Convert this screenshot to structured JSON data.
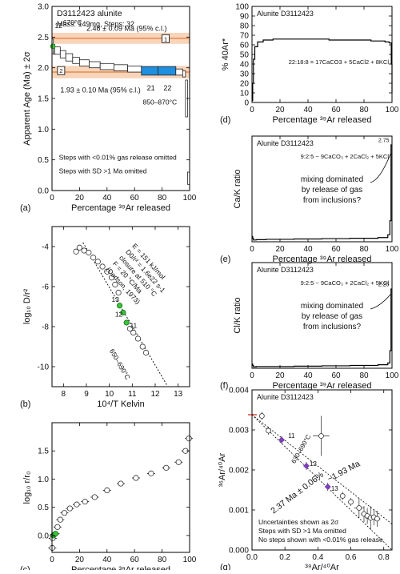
{
  "chart_data": [
    {
      "panel": "(a)",
      "type": "step",
      "title": "D3112423 alunite",
      "subtitle": "Mass: 149mg, Steps: 32",
      "xlabel": "Percentage ³⁹Ar released",
      "ylabel": "Apparent Age (Ma) ± 2σ",
      "xlim": [
        0,
        100
      ],
      "ylim": [
        0,
        3
      ],
      "xticks": [
        0,
        20,
        40,
        60,
        80,
        100
      ],
      "yticks": [
        0,
        0.5,
        1.0,
        1.5,
        2.0,
        2.5,
        3.0
      ],
      "plateau1": {
        "label": "2.48 ± 0.09 Ma (95% c.l.)",
        "value": 2.48,
        "err": 0.09,
        "id": "1"
      },
      "plateau2": {
        "label": "1.93 ± 0.10 Ma (95% c.l.)",
        "value": 1.93,
        "err": 0.1,
        "id": "2"
      },
      "annotations": [
        "12",
        "670°C",
        "21",
        "22",
        "850–870°C"
      ],
      "notes": [
        "Steps with <0.01% gas release omitted",
        "Steps with SD >1 Ma omitted"
      ],
      "steps": [
        {
          "x0": 0,
          "x1": 1,
          "y": 2.35,
          "e": 0.12
        },
        {
          "x0": 1,
          "x1": 2,
          "y": 2.3,
          "e": 0.08
        },
        {
          "x0": 2,
          "x1": 6,
          "y": 2.28,
          "e": 0.06
        },
        {
          "x0": 6,
          "x1": 10,
          "y": 2.22,
          "e": 0.06
        },
        {
          "x0": 10,
          "x1": 15,
          "y": 2.17,
          "e": 0.06
        },
        {
          "x0": 15,
          "x1": 20,
          "y": 2.12,
          "e": 0.05
        },
        {
          "x0": 20,
          "x1": 27,
          "y": 2.08,
          "e": 0.05
        },
        {
          "x0": 27,
          "x1": 35,
          "y": 2.05,
          "e": 0.05
        },
        {
          "x0": 35,
          "x1": 45,
          "y": 2.02,
          "e": 0.05
        },
        {
          "x0": 45,
          "x1": 55,
          "y": 2.0,
          "e": 0.05
        },
        {
          "x0": 55,
          "x1": 65,
          "y": 1.98,
          "e": 0.05
        },
        {
          "x0": 65,
          "x1": 77,
          "y": 1.95,
          "e": 0.07,
          "blue": true
        },
        {
          "x0": 77,
          "x1": 90,
          "y": 1.95,
          "e": 0.07,
          "blue": true
        },
        {
          "x0": 90,
          "x1": 95,
          "y": 1.93,
          "e": 0.05
        },
        {
          "x0": 95,
          "x1": 97,
          "y": 1.9,
          "e": 0.05
        },
        {
          "x0": 97,
          "x1": 98.5,
          "y": 1.5,
          "e": 0.3
        },
        {
          "x0": 98.5,
          "x1": 100,
          "y": 0.2,
          "e": 0.1
        }
      ]
    },
    {
      "panel": "(b)",
      "type": "scatter",
      "xlabel": "10⁴/T Kelvin",
      "ylabel": "log₁₀ D/r²",
      "xlim": [
        7.5,
        13.5
      ],
      "ylim": [
        -11,
        -3
      ],
      "xticks": [
        8,
        9,
        10,
        11,
        12,
        13
      ],
      "yticks": [
        -4,
        -6,
        -8,
        -10
      ],
      "line": {
        "x": [
          8.85,
          12.5
        ],
        "y": [
          -3.8,
          -10.9
        ]
      },
      "annotation_lines": [
        "E = 151 kJ/mol",
        "D0/r² = 1.6e22 s-1",
        "closure at 510 °C",
        "F = 20 °C/Ma",
        "(Dodson, 1973)"
      ],
      "labels": [
        "13",
        "12",
        "11",
        "650–690°C"
      ],
      "points": [
        {
          "x": 8.55,
          "y": -4.25
        },
        {
          "x": 8.7,
          "y": -4.05
        },
        {
          "x": 8.9,
          "y": -4.2
        },
        {
          "x": 9.1,
          "y": -4.3
        },
        {
          "x": 9.3,
          "y": -4.55
        },
        {
          "x": 9.5,
          "y": -4.75
        },
        {
          "x": 9.7,
          "y": -5.0
        },
        {
          "x": 9.9,
          "y": -5.25
        },
        {
          "x": 10.1,
          "y": -5.55
        },
        {
          "x": 10.25,
          "y": -5.9
        },
        {
          "x": 10.4,
          "y": -6.3
        },
        {
          "x": 10.45,
          "y": -6.95,
          "green": true
        },
        {
          "x": 10.6,
          "y": -7.3,
          "green": true
        },
        {
          "x": 10.75,
          "y": -7.8,
          "green": true
        },
        {
          "x": 10.9,
          "y": -8.1
        },
        {
          "x": 11.05,
          "y": -8.3
        },
        {
          "x": 11.25,
          "y": -8.6
        },
        {
          "x": 11.45,
          "y": -9.0
        },
        {
          "x": 11.6,
          "y": -9.3
        }
      ]
    },
    {
      "panel": "(c)",
      "type": "scatter",
      "xlabel": "Percentage ³⁹Ar released",
      "ylabel": "log₁₀ r/r₀",
      "xlim": [
        0,
        100
      ],
      "ylim": [
        -0.3,
        2.0
      ],
      "xticks": [
        0,
        20,
        40,
        60,
        80,
        100
      ],
      "yticks": [
        0.0,
        0.5,
        1.0,
        1.5
      ],
      "points": [
        {
          "x": 0.2,
          "y": -0.22
        },
        {
          "x": 0.5,
          "y": -0.05
        },
        {
          "x": 1.0,
          "y": 0.0,
          "green": true
        },
        {
          "x": 1.8,
          "y": 0.02,
          "green": true
        },
        {
          "x": 2.6,
          "y": 0.03,
          "green": true
        },
        {
          "x": 4,
          "y": 0.15
        },
        {
          "x": 6,
          "y": 0.28
        },
        {
          "x": 9,
          "y": 0.4
        },
        {
          "x": 13,
          "y": 0.48
        },
        {
          "x": 18,
          "y": 0.55
        },
        {
          "x": 24,
          "y": 0.6
        },
        {
          "x": 31,
          "y": 0.68
        },
        {
          "x": 40,
          "y": 0.8
        },
        {
          "x": 50,
          "y": 0.92
        },
        {
          "x": 61,
          "y": 1.02
        },
        {
          "x": 72,
          "y": 1.1
        },
        {
          "x": 83,
          "y": 1.2
        },
        {
          "x": 92,
          "y": 1.3
        },
        {
          "x": 97,
          "y": 1.5
        },
        {
          "x": 99.5,
          "y": 1.72
        }
      ]
    },
    {
      "panel": "(d)",
      "type": "step",
      "title": "Alunite D3112423",
      "xlabel": "Percentage ³⁹Ar released",
      "ylabel": "% 40Ar*",
      "xlim": [
        0,
        100
      ],
      "ylim": [
        0,
        100
      ],
      "xticks": [
        0,
        20,
        40,
        60,
        80,
        100
      ],
      "yticks": [
        0,
        10,
        20,
        30,
        40,
        50,
        60,
        70,
        80,
        90,
        100
      ],
      "annotation": "22:18:8 = 17CaCO3 + 5CaCl2 + 8KCl",
      "x": [
        0,
        0.5,
        1,
        2,
        4,
        8,
        15,
        25,
        40,
        55,
        70,
        85,
        95,
        98,
        99.5,
        100
      ],
      "y": [
        2,
        20,
        45,
        58,
        63,
        65,
        66,
        66,
        66,
        65,
        65,
        64,
        63,
        62,
        40,
        10
      ]
    },
    {
      "panel": "(e)",
      "type": "step",
      "title": "Alunite D3112423",
      "xlabel": "Percentage ³⁹Ar released",
      "ylabel": "Ca/K ratio",
      "xlim": [
        0,
        100
      ],
      "ylim": [
        0,
        3
      ],
      "xticks": [
        0,
        20,
        40,
        60,
        80,
        100
      ],
      "annotation": "9:2:5 ~ 9CaCO₃ + 2CaCl₂ + 5KCl",
      "value_label": "2.75",
      "note": [
        "mixing dominated",
        "by release of gas",
        "from inclusions?"
      ],
      "x": [
        0,
        0.5,
        1,
        3,
        10,
        30,
        50,
        70,
        90,
        97,
        98.5,
        99.3,
        100
      ],
      "y": [
        0.15,
        0.1,
        0.05,
        0.06,
        0.07,
        0.08,
        0.09,
        0.1,
        0.12,
        0.2,
        0.6,
        2.75,
        2.75
      ]
    },
    {
      "panel": "(f)",
      "type": "step",
      "title": "Alunite D3112423",
      "xlabel": "Percentage ³⁹Ar released",
      "ylabel": "Cl/K ratio",
      "xlim": [
        0,
        100
      ],
      "ylim": [
        0,
        3
      ],
      "xticks": [
        0,
        20,
        40,
        60,
        80,
        100
      ],
      "annotation": "9:2:5 ~ 9CaCO₃ + 2CaCl₂ + 5KCl",
      "value_label": "2.25",
      "note": [
        "mixing dominated",
        "by release of gas",
        "from inclusions?"
      ],
      "x": [
        0,
        0.5,
        1,
        3,
        10,
        30,
        50,
        70,
        90,
        97,
        98.5,
        99.3,
        100
      ],
      "y": [
        0.12,
        0.08,
        0.04,
        0.05,
        0.05,
        0.06,
        0.07,
        0.08,
        0.1,
        0.15,
        0.5,
        2.25,
        2.25
      ]
    },
    {
      "panel": "(g)",
      "type": "scatter",
      "title": "Alunite D3112423",
      "xlabel": "³⁹Ar/⁴⁰Ar",
      "ylabel": "³⁶Ar/⁴⁰Ar",
      "xlim": [
        0,
        0.85
      ],
      "ylim": [
        0,
        0.004
      ],
      "xticks": [
        0.0,
        0.2,
        0.4,
        0.6,
        0.8
      ],
      "yticks": [
        0.0,
        0.001,
        0.002,
        0.003,
        0.004
      ],
      "line_labels": [
        "2.37 Ma ± 0.06%",
        "~1.93 Ma"
      ],
      "point_labels": [
        "11",
        "12",
        "13",
        "630–690°C"
      ],
      "notes": [
        "Uncertainties shown as 2σ",
        "Steps with SD >1 Ma omitted",
        "No steps shown with <0.01% gas release"
      ],
      "lines": [
        {
          "x": [
            0.0,
            0.85
          ],
          "y": [
            0.00338,
            0.0
          ]
        },
        {
          "x": [
            0.0,
            0.85
          ],
          "y": [
            0.00338,
            0.00065
          ]
        }
      ],
      "points": [
        {
          "x": 0.06,
          "y": 0.00335,
          "ex": 0.01,
          "ey": 0.0001
        },
        {
          "x": 0.1,
          "y": 0.00298,
          "ex": 0.01,
          "ey": 0.0001
        },
        {
          "x": 0.18,
          "y": 0.00275,
          "ex": 0.01,
          "ey": 0.0001,
          "purple": true
        },
        {
          "x": 0.33,
          "y": 0.0021,
          "ex": 0.01,
          "ey": 0.0001,
          "purple": true
        },
        {
          "x": 0.42,
          "y": 0.00285,
          "ex": 0.05,
          "ey": 0.0005
        },
        {
          "x": 0.46,
          "y": 0.00158,
          "ex": 0.01,
          "ey": 0.0001,
          "purple": true
        },
        {
          "x": 0.55,
          "y": 0.00135,
          "ex": 0.01,
          "ey": 0.0001
        },
        {
          "x": 0.6,
          "y": 0.0012,
          "ex": 0.01,
          "ey": 0.0001
        },
        {
          "x": 0.65,
          "y": 0.00105,
          "ex": 0.03,
          "ey": 0.00025
        },
        {
          "x": 0.68,
          "y": 0.0009,
          "ex": 0.02,
          "ey": 0.0002
        },
        {
          "x": 0.7,
          "y": 0.00085,
          "ex": 0.02,
          "ey": 0.0002
        },
        {
          "x": 0.72,
          "y": 0.0008,
          "ex": 0.03,
          "ey": 0.0003
        },
        {
          "x": 0.74,
          "y": 0.00082,
          "ex": 0.02,
          "ey": 0.0002
        },
        {
          "x": 0.76,
          "y": 0.00078,
          "ex": 0.02,
          "ey": 0.0002
        }
      ]
    }
  ],
  "colors": {
    "orange_band": "#f6c9a8",
    "orange_line": "#e07a3c",
    "blue_step": "#1f8fe0",
    "green_point": "#39c43a",
    "purple_point": "#7b3fb8",
    "red_tick": "#d23b2a"
  }
}
